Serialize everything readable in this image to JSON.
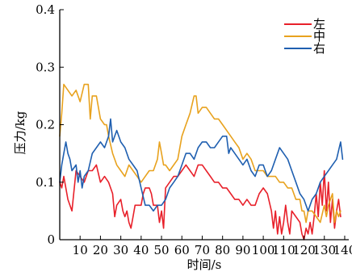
{
  "chart_data": {
    "type": "line",
    "title": "",
    "xlabel": "时间/s",
    "ylabel": "压力/kg",
    "xlim": [
      0,
      142
    ],
    "ylim": [
      0,
      0.4
    ],
    "x_ticks": [
      10,
      20,
      30,
      40,
      50,
      60,
      70,
      80,
      90,
      100,
      110,
      120,
      130,
      140
    ],
    "y_ticks": [
      0,
      0.1,
      0.2,
      0.3,
      0.4
    ],
    "y_tick_labels": [
      "0",
      "0.1",
      "0.2",
      "0.3",
      "0.4"
    ],
    "grid": false,
    "legend_position": "top-right",
    "series": [
      {
        "name": "左",
        "color": "#e8202a",
        "points": [
          [
            0,
            0.1
          ],
          [
            1,
            0.09
          ],
          [
            2,
            0.11
          ],
          [
            4,
            0.07
          ],
          [
            6,
            0.05
          ],
          [
            8,
            0.12
          ],
          [
            10,
            0.11
          ],
          [
            12,
            0.1
          ],
          [
            14,
            0.12
          ],
          [
            16,
            0.12
          ],
          [
            18,
            0.13
          ],
          [
            20,
            0.1
          ],
          [
            22,
            0.11
          ],
          [
            24,
            0.1
          ],
          [
            26,
            0.08
          ],
          [
            27,
            0.04
          ],
          [
            28,
            0.06
          ],
          [
            30,
            0.07
          ],
          [
            31,
            0.05
          ],
          [
            32,
            0.04
          ],
          [
            33,
            0.05
          ],
          [
            34,
            0.03
          ],
          [
            35,
            0.02
          ],
          [
            36,
            0.04
          ],
          [
            37,
            0.06
          ],
          [
            38,
            0.06
          ],
          [
            40,
            0.06
          ],
          [
            41,
            0.08
          ],
          [
            42,
            0.09
          ],
          [
            44,
            0.09
          ],
          [
            45,
            0.08
          ],
          [
            46,
            0.06
          ],
          [
            48,
            0.06
          ],
          [
            49,
            0.03
          ],
          [
            50,
            0.05
          ],
          [
            51,
            0.02
          ],
          [
            52,
            0.09
          ],
          [
            54,
            0.1
          ],
          [
            56,
            0.11
          ],
          [
            58,
            0.11
          ],
          [
            60,
            0.12
          ],
          [
            62,
            0.13
          ],
          [
            64,
            0.12
          ],
          [
            66,
            0.11
          ],
          [
            68,
            0.13
          ],
          [
            70,
            0.13
          ],
          [
            72,
            0.12
          ],
          [
            74,
            0.11
          ],
          [
            76,
            0.1
          ],
          [
            78,
            0.1
          ],
          [
            80,
            0.09
          ],
          [
            82,
            0.09
          ],
          [
            84,
            0.08
          ],
          [
            86,
            0.07
          ],
          [
            88,
            0.07
          ],
          [
            90,
            0.06
          ],
          [
            92,
            0.07
          ],
          [
            94,
            0.06
          ],
          [
            96,
            0.06
          ],
          [
            98,
            0.08
          ],
          [
            100,
            0.09
          ],
          [
            102,
            0.08
          ],
          [
            104,
            0.05
          ],
          [
            105,
            0.02
          ],
          [
            106,
            0.05
          ],
          [
            107,
            0.01
          ],
          [
            108,
            0.04
          ],
          [
            109,
            0.01
          ],
          [
            110,
            0.03
          ],
          [
            111,
            0.06
          ],
          [
            112,
            0.03
          ],
          [
            113,
            0.01
          ],
          [
            114,
            0.05
          ],
          [
            116,
            0.04
          ],
          [
            118,
            0.03
          ],
          [
            119,
            0.01
          ],
          [
            120,
            0.0
          ],
          [
            121,
            0.02
          ],
          [
            122,
            0.01
          ],
          [
            123,
            0.03
          ],
          [
            124,
            0.01
          ],
          [
            125,
            0.04
          ],
          [
            126,
            0.08
          ],
          [
            127,
            0.04
          ],
          [
            128,
            0.1
          ],
          [
            129,
            0.06
          ],
          [
            130,
            0.12
          ],
          [
            131,
            0.05
          ],
          [
            132,
            0.1
          ],
          [
            133,
            0.03
          ],
          [
            134,
            0.07
          ],
          [
            135,
            0.02
          ],
          [
            136,
            0.05
          ],
          [
            137,
            0.07
          ],
          [
            138,
            0.04
          ]
        ]
      },
      {
        "name": "中",
        "color": "#e8a21e",
        "points": [
          [
            0,
            0.18
          ],
          [
            1,
            0.22
          ],
          [
            2,
            0.27
          ],
          [
            4,
            0.26
          ],
          [
            6,
            0.25
          ],
          [
            8,
            0.26
          ],
          [
            10,
            0.24
          ],
          [
            12,
            0.27
          ],
          [
            14,
            0.27
          ],
          [
            15,
            0.21
          ],
          [
            16,
            0.25
          ],
          [
            18,
            0.25
          ],
          [
            20,
            0.21
          ],
          [
            22,
            0.2
          ],
          [
            23,
            0.2
          ],
          [
            24,
            0.18
          ],
          [
            26,
            0.15
          ],
          [
            28,
            0.13
          ],
          [
            30,
            0.12
          ],
          [
            32,
            0.11
          ],
          [
            34,
            0.13
          ],
          [
            36,
            0.12
          ],
          [
            38,
            0.11
          ],
          [
            40,
            0.1
          ],
          [
            42,
            0.11
          ],
          [
            44,
            0.12
          ],
          [
            46,
            0.12
          ],
          [
            48,
            0.14
          ],
          [
            49,
            0.17
          ],
          [
            50,
            0.15
          ],
          [
            51,
            0.13
          ],
          [
            52,
            0.13
          ],
          [
            54,
            0.12
          ],
          [
            56,
            0.13
          ],
          [
            58,
            0.14
          ],
          [
            60,
            0.18
          ],
          [
            62,
            0.2
          ],
          [
            64,
            0.22
          ],
          [
            66,
            0.25
          ],
          [
            67,
            0.25
          ],
          [
            68,
            0.22
          ],
          [
            70,
            0.23
          ],
          [
            72,
            0.23
          ],
          [
            74,
            0.22
          ],
          [
            76,
            0.21
          ],
          [
            78,
            0.21
          ],
          [
            80,
            0.2
          ],
          [
            82,
            0.19
          ],
          [
            84,
            0.18
          ],
          [
            86,
            0.17
          ],
          [
            88,
            0.16
          ],
          [
            90,
            0.14
          ],
          [
            92,
            0.15
          ],
          [
            94,
            0.14
          ],
          [
            96,
            0.12
          ],
          [
            98,
            0.12
          ],
          [
            100,
            0.12
          ],
          [
            102,
            0.11
          ],
          [
            104,
            0.11
          ],
          [
            106,
            0.11
          ],
          [
            108,
            0.1
          ],
          [
            110,
            0.1
          ],
          [
            112,
            0.09
          ],
          [
            114,
            0.09
          ],
          [
            116,
            0.07
          ],
          [
            118,
            0.07
          ],
          [
            119,
            0.05
          ],
          [
            120,
            0.05
          ],
          [
            121,
            0.03
          ],
          [
            122,
            0.05
          ],
          [
            124,
            0.05
          ],
          [
            126,
            0.04
          ],
          [
            128,
            0.03
          ],
          [
            130,
            0.06
          ],
          [
            131,
            0.04
          ],
          [
            132,
            0.06
          ],
          [
            134,
            0.08
          ],
          [
            135,
            0.03
          ],
          [
            136,
            0.05
          ],
          [
            137,
            0.04
          ],
          [
            138,
            0.05
          ]
        ]
      },
      {
        "name": "右",
        "color": "#1f5fb0",
        "points": [
          [
            0,
            0.1
          ],
          [
            1,
            0.13
          ],
          [
            2,
            0.15
          ],
          [
            3,
            0.17
          ],
          [
            4,
            0.15
          ],
          [
            5,
            0.14
          ],
          [
            6,
            0.12
          ],
          [
            8,
            0.13
          ],
          [
            9,
            0.1
          ],
          [
            10,
            0.12
          ],
          [
            11,
            0.09
          ],
          [
            12,
            0.11
          ],
          [
            14,
            0.12
          ],
          [
            16,
            0.15
          ],
          [
            18,
            0.16
          ],
          [
            20,
            0.17
          ],
          [
            22,
            0.16
          ],
          [
            24,
            0.18
          ],
          [
            25,
            0.21
          ],
          [
            26,
            0.17
          ],
          [
            28,
            0.19
          ],
          [
            30,
            0.17
          ],
          [
            32,
            0.16
          ],
          [
            34,
            0.14
          ],
          [
            36,
            0.13
          ],
          [
            38,
            0.12
          ],
          [
            40,
            0.09
          ],
          [
            42,
            0.06
          ],
          [
            44,
            0.06
          ],
          [
            46,
            0.05
          ],
          [
            48,
            0.06
          ],
          [
            50,
            0.06
          ],
          [
            52,
            0.07
          ],
          [
            54,
            0.09
          ],
          [
            56,
            0.1
          ],
          [
            58,
            0.11
          ],
          [
            60,
            0.13
          ],
          [
            62,
            0.15
          ],
          [
            64,
            0.15
          ],
          [
            66,
            0.14
          ],
          [
            68,
            0.16
          ],
          [
            70,
            0.17
          ],
          [
            72,
            0.17
          ],
          [
            74,
            0.16
          ],
          [
            76,
            0.16
          ],
          [
            78,
            0.17
          ],
          [
            80,
            0.18
          ],
          [
            82,
            0.18
          ],
          [
            83,
            0.15
          ],
          [
            84,
            0.16
          ],
          [
            86,
            0.15
          ],
          [
            88,
            0.14
          ],
          [
            90,
            0.13
          ],
          [
            92,
            0.14
          ],
          [
            94,
            0.12
          ],
          [
            96,
            0.11
          ],
          [
            98,
            0.13
          ],
          [
            100,
            0.13
          ],
          [
            101,
            0.12
          ],
          [
            102,
            0.11
          ],
          [
            104,
            0.12
          ],
          [
            106,
            0.14
          ],
          [
            108,
            0.16
          ],
          [
            110,
            0.15
          ],
          [
            112,
            0.14
          ],
          [
            114,
            0.12
          ],
          [
            116,
            0.1
          ],
          [
            118,
            0.08
          ],
          [
            120,
            0.07
          ],
          [
            122,
            0.05
          ],
          [
            124,
            0.07
          ],
          [
            126,
            0.08
          ],
          [
            128,
            0.1
          ],
          [
            130,
            0.11
          ],
          [
            132,
            0.12
          ],
          [
            134,
            0.13
          ],
          [
            136,
            0.14
          ],
          [
            138,
            0.17
          ],
          [
            139,
            0.14
          ]
        ]
      }
    ]
  }
}
